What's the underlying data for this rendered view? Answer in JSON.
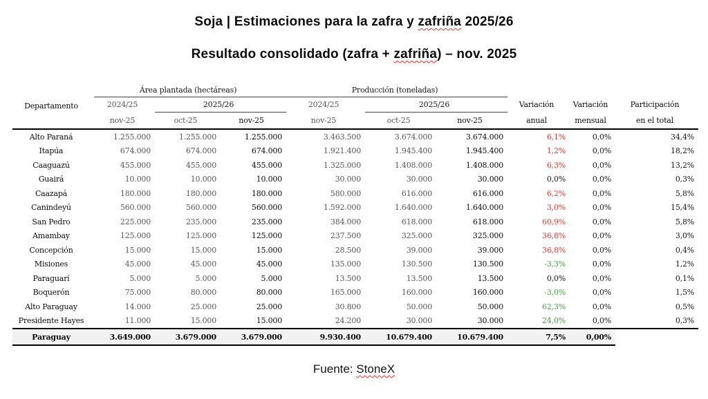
{
  "titles": {
    "line1": {
      "pre": "Soja | Estimaciones para la zafra y ",
      "misspelled": "zafriña",
      "post": " 2025/26"
    },
    "line2": {
      "pre": "Resultado consolidado (zafra + ",
      "misspelled": "zafriña",
      "post": ") – nov. 2025"
    }
  },
  "table": {
    "group_area": "Área plantada (hectáreas)",
    "group_produccion": "Producción (toneladas)",
    "header": {
      "departamento": "Departamento",
      "area_season_prev": "2024/25",
      "area_season_curr": "2025/26",
      "prod_season_prev": "2024/25",
      "prod_season_curr": "2025/26",
      "area_sub": [
        "nov-25",
        "oct-25",
        "nov-25"
      ],
      "prod_sub": [
        "nov-25",
        "oct-25",
        "nov-25"
      ],
      "var_anual_l1": "Variación",
      "var_anual_l2": "anual",
      "var_mensual_l1": "Variación",
      "var_mensual_l2": "mensual",
      "participacion_l1": "Participación",
      "participacion_l2": "en el total"
    },
    "rows": [
      {
        "dept": "Alto Paraná",
        "area": [
          "1.255.000",
          "1.255.000",
          "1.255.000"
        ],
        "prod": [
          "3.463.500",
          "3.674.000",
          "3.674.000"
        ],
        "var_anual": "6,1%",
        "var_anual_color": "red",
        "var_mensual": "0,0%",
        "participacion": "34,4%"
      },
      {
        "dept": "Itapúa",
        "area": [
          "674.000",
          "674.000",
          "674.000"
        ],
        "prod": [
          "1.921.400",
          "1.945.400",
          "1.945.400"
        ],
        "var_anual": "1,2%",
        "var_anual_color": "red",
        "var_mensual": "0,0%",
        "participacion": "18,2%"
      },
      {
        "dept": "Caaguazú",
        "area": [
          "455.000",
          "455.000",
          "455.000"
        ],
        "prod": [
          "1.325.000",
          "1.408.000",
          "1.408.000"
        ],
        "var_anual": "6,3%",
        "var_anual_color": "red",
        "var_mensual": "0,0%",
        "participacion": "13,2%"
      },
      {
        "dept": "Guairá",
        "area": [
          "10.000",
          "10.000",
          "10.000"
        ],
        "prod": [
          "30.000",
          "30.000",
          "30.000"
        ],
        "var_anual": "0,0%",
        "var_anual_color": "black",
        "var_mensual": "0,0%",
        "participacion": "0,3%"
      },
      {
        "dept": "Caazapá",
        "area": [
          "180.000",
          "180.000",
          "180.000"
        ],
        "prod": [
          "580.000",
          "616.000",
          "616.000"
        ],
        "var_anual": "6,2%",
        "var_anual_color": "red",
        "var_mensual": "0,0%",
        "participacion": "5,8%"
      },
      {
        "dept": "Canindeyú",
        "area": [
          "560.000",
          "560.000",
          "560.000"
        ],
        "prod": [
          "1.592.000",
          "1.640.000",
          "1.640.000"
        ],
        "var_anual": "3,0%",
        "var_anual_color": "red",
        "var_mensual": "0,0%",
        "participacion": "15,4%"
      },
      {
        "dept": "San Pedro",
        "area": [
          "225.000",
          "235.000",
          "235.000"
        ],
        "prod": [
          "384.000",
          "618.000",
          "618.000"
        ],
        "var_anual": "60,9%",
        "var_anual_color": "red",
        "var_mensual": "0,0%",
        "participacion": "5,8%"
      },
      {
        "dept": "Amambay",
        "area": [
          "125.000",
          "125.000",
          "125.000"
        ],
        "prod": [
          "237.500",
          "325.000",
          "325.000"
        ],
        "var_anual": "36,8%",
        "var_anual_color": "red",
        "var_mensual": "0,0%",
        "participacion": "3,0%"
      },
      {
        "dept": "Concepción",
        "area": [
          "15.000",
          "15.000",
          "15.000"
        ],
        "prod": [
          "28.500",
          "39.000",
          "39.000"
        ],
        "var_anual": "36,8%",
        "var_anual_color": "red",
        "var_mensual": "0,0%",
        "participacion": "0,4%"
      },
      {
        "dept": "Misiones",
        "area": [
          "45.000",
          "45.000",
          "45.000"
        ],
        "prod": [
          "135.000",
          "130.500",
          "130.500"
        ],
        "var_anual": "-3,3%",
        "var_anual_color": "green",
        "var_mensual": "0,0%",
        "participacion": "1,2%"
      },
      {
        "dept": "Paraguarí",
        "area": [
          "5.000",
          "5.000",
          "5.000"
        ],
        "prod": [
          "13.500",
          "13.500",
          "13.500"
        ],
        "var_anual": "0,0%",
        "var_anual_color": "black",
        "var_mensual": "0,0%",
        "participacion": "0,1%"
      },
      {
        "dept": "Boquerón",
        "area": [
          "75.000",
          "80.000",
          "80.000"
        ],
        "prod": [
          "165.000",
          "160.000",
          "160.000"
        ],
        "var_anual": "-3,0%",
        "var_anual_color": "green",
        "var_mensual": "0,0%",
        "participacion": "1,5%"
      },
      {
        "dept": "Alto Paraguay",
        "area": [
          "14.000",
          "25.000",
          "25.000"
        ],
        "prod": [
          "30.800",
          "50.000",
          "50.000"
        ],
        "var_anual": "62,3%",
        "var_anual_color": "green",
        "var_mensual": "0,0%",
        "participacion": "0,5%"
      },
      {
        "dept": "Presidente Hayes",
        "area": [
          "11.000",
          "15.000",
          "15.000"
        ],
        "prod": [
          "24.200",
          "30.000",
          "30.000"
        ],
        "var_anual": "24,0%",
        "var_anual_color": "green",
        "var_mensual": "0,0%",
        "participacion": "0,3%"
      }
    ],
    "total": {
      "dept": "Paraguay",
      "area": [
        "3.649.000",
        "3.679.000",
        "3.679.000"
      ],
      "prod": [
        "9.930.400",
        "10.679.400",
        "10.679.400"
      ],
      "var_anual": "7,5%",
      "var_anual_color": "green",
      "var_mensual": "0,00%",
      "participacion": ""
    }
  },
  "footer": {
    "pre": "Fuente: ",
    "misspelled": "StoneX",
    "post": ""
  },
  "colors": {
    "variation_up_red": "#ed3b36",
    "variation_green": "#4ea24e",
    "secondary_gray": "#595959",
    "total_row_background": "#f2f2f2",
    "spellcheck_squiggle": "#ff2a2a"
  }
}
